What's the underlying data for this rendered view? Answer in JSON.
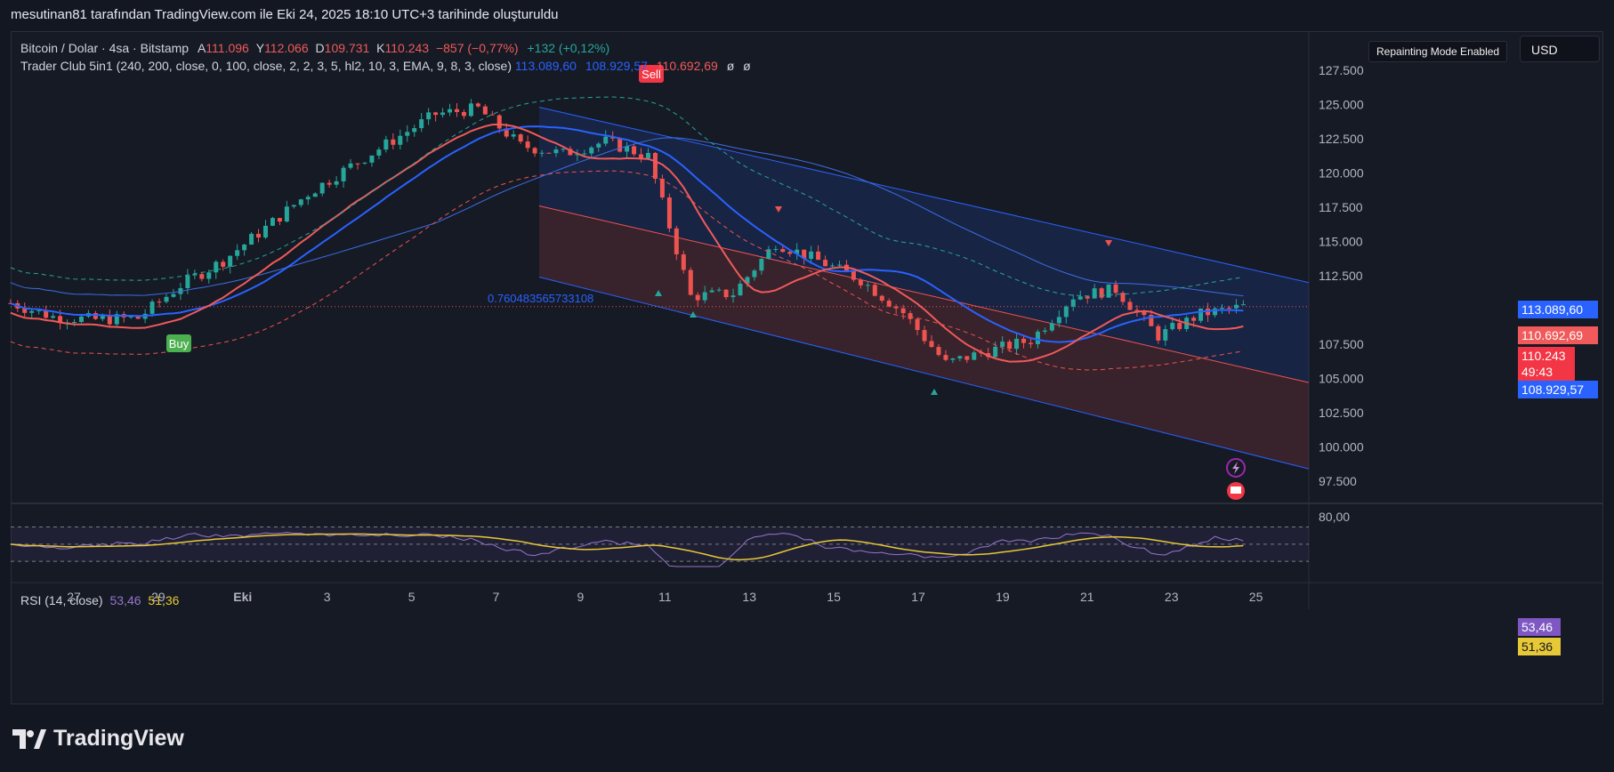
{
  "caption": "mesutinan81 tarafından TradingView.com ile Eki 24, 2025 18:10 UTC+3 tarihinde oluşturuldu",
  "legend": {
    "symbol": "Bitcoin / Dolar · 4sa · Bitstamp",
    "open_label": "A",
    "open": "111.096",
    "high_label": "Y",
    "high": "112.066",
    "low_label": "D",
    "low": "109.731",
    "close_label": "K",
    "close": "110.243",
    "change": "−857 (−0,77%)",
    "extra": "+132 (+0,12%)",
    "indicator": "Trader Club 5in1 (240, 200, close, 0, 100, close, 2, 2, 3, 5, hl2, 10, 3, EMA, 9, 8, 3, close)",
    "ind_v1": "113.089,60",
    "ind_v2": "108.929,57",
    "ind_v3": "110.692,69",
    "ind_v4": "ø",
    "ind_v5": "ø"
  },
  "repaint_label": "Repainting Mode Enabled",
  "currency": "USD",
  "fib_label": "0.760483565733108",
  "sell_label": "Sell",
  "buy_label": "Buy",
  "price_tags": {
    "upper": "113.089,60",
    "ema": "110.692,69",
    "last": "110.243",
    "countdown": "49:43",
    "lower": "108.929,57"
  },
  "rsi": {
    "label": "RSI (14, close)",
    "value": "53,46",
    "ma": "51,36",
    "axis": [
      "80,00"
    ]
  },
  "brand": "TradingView",
  "colors": {
    "up": "#26a69a",
    "down": "#ef5350",
    "blue": "#2962ff",
    "red_line": "#f05a5a",
    "rsi": "#9575cd",
    "rsi_ma": "#e7c836"
  },
  "chart_data": {
    "type": "line",
    "title": "",
    "x_ticks": [
      "27",
      "29",
      "Eki",
      "3",
      "5",
      "7",
      "9",
      "11",
      "13",
      "15",
      "17",
      "19",
      "21",
      "23",
      "25"
    ],
    "y_ticks": [
      "127.500",
      "125.000",
      "122.500",
      "120.000",
      "117.500",
      "115.000",
      "112.500",
      "107.500",
      "105.000",
      "102.500",
      "100.000",
      "97.500"
    ],
    "ylim": [
      96500,
      129000
    ],
    "series": [
      {
        "name": "",
        "x": [
          "Sep 25 12:00",
          "Sep 26",
          "Sep 27",
          "Sep 28",
          "Sep 29",
          "Sep 30",
          "Oct 1",
          "Oct 2",
          "Oct 3",
          "Oct 4",
          "Oct 5",
          "Oct 6",
          "Oct 7",
          "Oct 8",
          "Oct 9",
          "Oct 10",
          "Oct 11",
          "Oct 12",
          "Oct 13",
          "Oct 14",
          "Oct 15",
          "Oct 16",
          "Oct 17",
          "Oct 18",
          "Oct 19",
          "Oct 20",
          "Oct 21",
          "Oct 22",
          "Oct 23",
          "Oct 24 16:00"
        ],
        "values": [
          110500,
          109500,
          109300,
          109400,
          111800,
          113600,
          116000,
          118500,
          120500,
          122400,
          124300,
          124700,
          122000,
          121400,
          122300,
          121200,
          111000,
          111200,
          114900,
          113600,
          112200,
          109800,
          106100,
          107000,
          107800,
          111000,
          111500,
          108100,
          109700,
          110243
        ]
      }
    ]
  }
}
